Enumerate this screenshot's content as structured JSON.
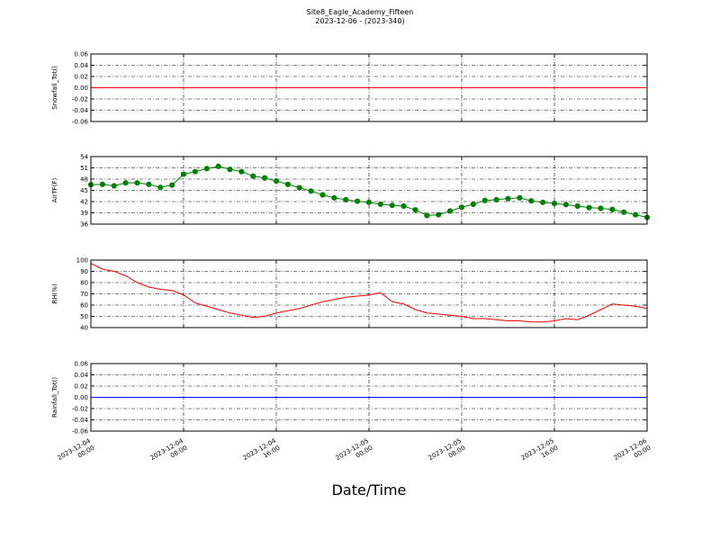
{
  "title": "Site8_Eagle_Academy_Fifteen",
  "subtitle": "2023-12-06 - (2023-340)",
  "xlabel": "Date/Time",
  "xlim": [
    "2023-12-04 00:00",
    "2023-12-06 00:00"
  ],
  "xticks": [
    "2023-12-04 00:00",
    "2023-12-04 08:00",
    "2023-12-04 16:00",
    "2023-12-05 00:00",
    "2023-12-05 08:00",
    "2023-12-05 16:00",
    "2023-12-06 00:00"
  ],
  "chart_data": [
    {
      "type": "line",
      "ylabel": "Snowfall_Tot()",
      "color": "#ff0000",
      "x": [
        "2023-12-04 00:00",
        "2023-12-06 00:00"
      ],
      "values": [
        0,
        0
      ],
      "ylim": [
        -0.06,
        0.06
      ],
      "yticks": [
        -0.06,
        -0.04,
        -0.02,
        {
          "value": 0,
          "label": "0.00"
        },
        0.02,
        0.04,
        0.06
      ],
      "grid": true
    },
    {
      "type": "line",
      "ylabel": "AirTF(F)",
      "color": "#008000",
      "marker": "o",
      "x": [
        "2023-12-04 00:00",
        "2023-12-04 01:00",
        "2023-12-04 02:00",
        "2023-12-04 03:00",
        "2023-12-04 04:00",
        "2023-12-04 05:00",
        "2023-12-04 06:00",
        "2023-12-04 07:00",
        "2023-12-04 08:00",
        "2023-12-04 09:00",
        "2023-12-04 10:00",
        "2023-12-04 11:00",
        "2023-12-04 12:00",
        "2023-12-04 13:00",
        "2023-12-04 14:00",
        "2023-12-04 15:00",
        "2023-12-04 16:00",
        "2023-12-04 17:00",
        "2023-12-04 18:00",
        "2023-12-04 19:00",
        "2023-12-04 20:00",
        "2023-12-04 21:00",
        "2023-12-04 22:00",
        "2023-12-04 23:00",
        "2023-12-05 00:00",
        "2023-12-05 01:00",
        "2023-12-05 02:00",
        "2023-12-05 03:00",
        "2023-12-05 04:00",
        "2023-12-05 05:00",
        "2023-12-05 06:00",
        "2023-12-05 07:00",
        "2023-12-05 08:00",
        "2023-12-05 09:00",
        "2023-12-05 10:00",
        "2023-12-05 11:00",
        "2023-12-05 12:00",
        "2023-12-05 13:00",
        "2023-12-05 14:00",
        "2023-12-05 15:00",
        "2023-12-05 16:00",
        "2023-12-05 17:00",
        "2023-12-05 18:00",
        "2023-12-05 19:00",
        "2023-12-05 20:00",
        "2023-12-05 21:00",
        "2023-12-05 22:00",
        "2023-12-05 23:00",
        "2023-12-06 00:00"
      ],
      "values": [
        46.5,
        46.6,
        46.2,
        47.0,
        47.0,
        46.6,
        45.8,
        46.4,
        49.3,
        50.0,
        50.8,
        51.4,
        50.6,
        50.0,
        48.8,
        48.3,
        47.5,
        46.6,
        45.7,
        44.8,
        43.8,
        43.0,
        42.5,
        42.1,
        41.8,
        41.3,
        41.0,
        40.8,
        39.8,
        38.3,
        38.5,
        39.5,
        40.5,
        41.3,
        42.3,
        42.5,
        42.8,
        43.0,
        42.2,
        41.8,
        41.5,
        41.2,
        40.8,
        40.4,
        40.2,
        39.9,
        39.2,
        38.5,
        37.8
      ],
      "ylim": [
        36,
        54
      ],
      "yticks": [
        36,
        39,
        42,
        45,
        48,
        51,
        54
      ],
      "grid": true
    },
    {
      "type": "line",
      "ylabel": "RH(%)",
      "color": "#ff0000",
      "x": [
        "2023-12-04 00:00",
        "2023-12-04 01:00",
        "2023-12-04 02:00",
        "2023-12-04 03:00",
        "2023-12-04 04:00",
        "2023-12-04 05:00",
        "2023-12-04 06:00",
        "2023-12-04 07:00",
        "2023-12-04 08:00",
        "2023-12-04 09:00",
        "2023-12-04 10:00",
        "2023-12-04 11:00",
        "2023-12-04 12:00",
        "2023-12-04 13:00",
        "2023-12-04 14:00",
        "2023-12-04 15:00",
        "2023-12-04 16:00",
        "2023-12-04 17:00",
        "2023-12-04 18:00",
        "2023-12-04 19:00",
        "2023-12-04 20:00",
        "2023-12-04 21:00",
        "2023-12-04 22:00",
        "2023-12-04 23:00",
        "2023-12-05 00:00",
        "2023-12-05 01:00",
        "2023-12-05 02:00",
        "2023-12-05 03:00",
        "2023-12-05 04:00",
        "2023-12-05 05:00",
        "2023-12-05 06:00",
        "2023-12-05 07:00",
        "2023-12-05 08:00",
        "2023-12-05 09:00",
        "2023-12-05 10:00",
        "2023-12-05 11:00",
        "2023-12-05 12:00",
        "2023-12-05 13:00",
        "2023-12-05 14:00",
        "2023-12-05 15:00",
        "2023-12-05 16:00",
        "2023-12-05 17:00",
        "2023-12-05 18:00",
        "2023-12-05 19:00",
        "2023-12-05 20:00",
        "2023-12-05 21:00",
        "2023-12-05 22:00",
        "2023-12-05 23:00",
        "2023-12-06 00:00"
      ],
      "values": [
        97,
        92,
        90,
        86,
        80,
        76,
        74,
        73,
        69,
        62,
        59,
        56,
        53,
        51,
        49,
        50,
        53,
        55,
        57,
        60,
        63,
        65,
        67,
        68,
        69,
        71,
        63,
        61,
        56,
        53,
        52,
        51,
        50,
        48,
        48,
        47,
        46,
        46,
        45,
        45,
        46,
        48,
        47,
        51,
        56,
        61,
        60,
        59,
        57
      ],
      "ylim": [
        40,
        100
      ],
      "yticks": [
        40,
        50,
        60,
        70,
        80,
        90,
        100
      ],
      "grid": true
    },
    {
      "type": "line",
      "ylabel": "Rainfall_Tot()",
      "color": "#0000ff",
      "x": [
        "2023-12-04 00:00",
        "2023-12-06 00:00"
      ],
      "values": [
        0,
        0
      ],
      "ylim": [
        -0.06,
        0.06
      ],
      "yticks": [
        -0.06,
        -0.04,
        -0.02,
        {
          "value": 0,
          "label": "0.00"
        },
        0.02,
        0.04,
        0.06
      ],
      "grid": true
    }
  ]
}
